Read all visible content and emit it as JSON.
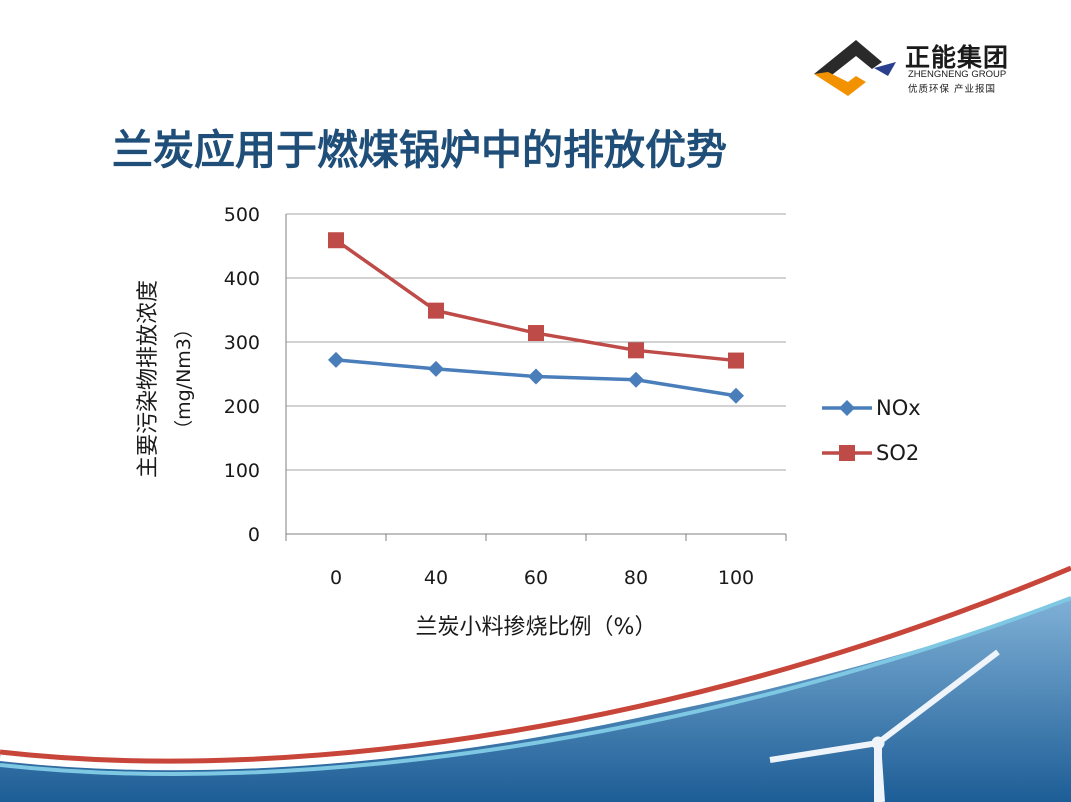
{
  "logo": {
    "name_cn": "正能集团",
    "name_en": "ZHENGNENG GROUP",
    "slogan": "优质环保  产业报国"
  },
  "title": "兰炭应用于燃煤锅炉中的排放优势",
  "colors": {
    "title": "#1f4e79",
    "nox": "#4a7ebb",
    "so2": "#be4b48",
    "grid": "#a6a6a6",
    "logo_dark": "#2a2a2a",
    "logo_orange": "#f39200",
    "logo_blue": "#2b3f8f"
  },
  "chart_data": {
    "type": "line",
    "categories": [
      "0",
      "40",
      "60",
      "80",
      "100"
    ],
    "series": [
      {
        "name": "NOx",
        "values": [
          272,
          258,
          246,
          241,
          216
        ],
        "color": "#4a7ebb",
        "marker": "diamond"
      },
      {
        "name": "SO2",
        "values": [
          459,
          349,
          314,
          287,
          271
        ],
        "color": "#be4b48",
        "marker": "square"
      }
    ],
    "xlabel": "兰炭小料掺烧比例（%）",
    "ylabel_line1": "主要污染物排放浓度",
    "ylabel_line2": "（mg/Nm3）",
    "ylim": [
      0,
      500
    ],
    "yticks": [
      0,
      100,
      200,
      300,
      400,
      500
    ],
    "grid": true,
    "legend": "right"
  }
}
